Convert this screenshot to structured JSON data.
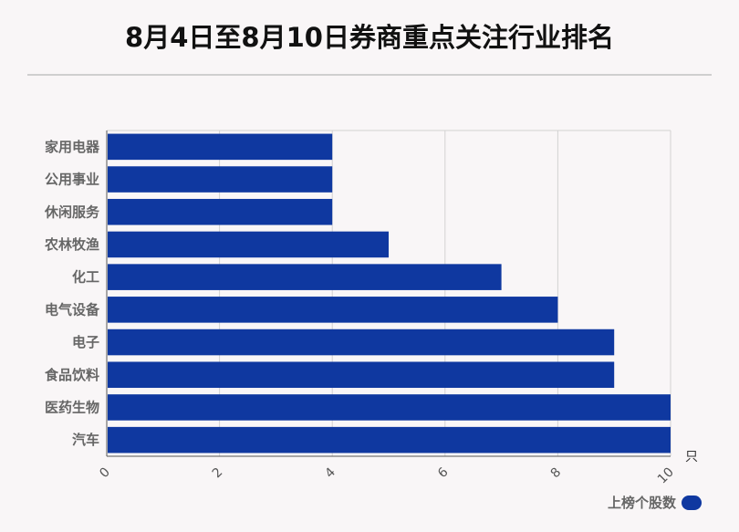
{
  "title": "8月4日至8月10日券商重点关注行业排名",
  "chart_data": {
    "type": "bar",
    "orientation": "horizontal",
    "title": "8月4日至8月10日券商重点关注行业排名",
    "categories": [
      "家用电器",
      "公用事业",
      "休闲服务",
      "农林牧渔",
      "化工",
      "电气设备",
      "电子",
      "食品饮料",
      "医药生物",
      "汽车"
    ],
    "series": [
      {
        "name": "上榜个股数",
        "values": [
          4,
          4,
          4,
          5,
          7,
          8,
          9,
          9,
          10,
          10
        ],
        "color": "#0f38a0"
      }
    ],
    "xlim": [
      0,
      10
    ],
    "xticks": [
      "0",
      "2",
      "4",
      "6",
      "8",
      "10"
    ],
    "xunit": "只",
    "grid": true,
    "legend": "bottom-right"
  },
  "legend": {
    "label": "上榜个股数",
    "color": "#0f38a0"
  }
}
